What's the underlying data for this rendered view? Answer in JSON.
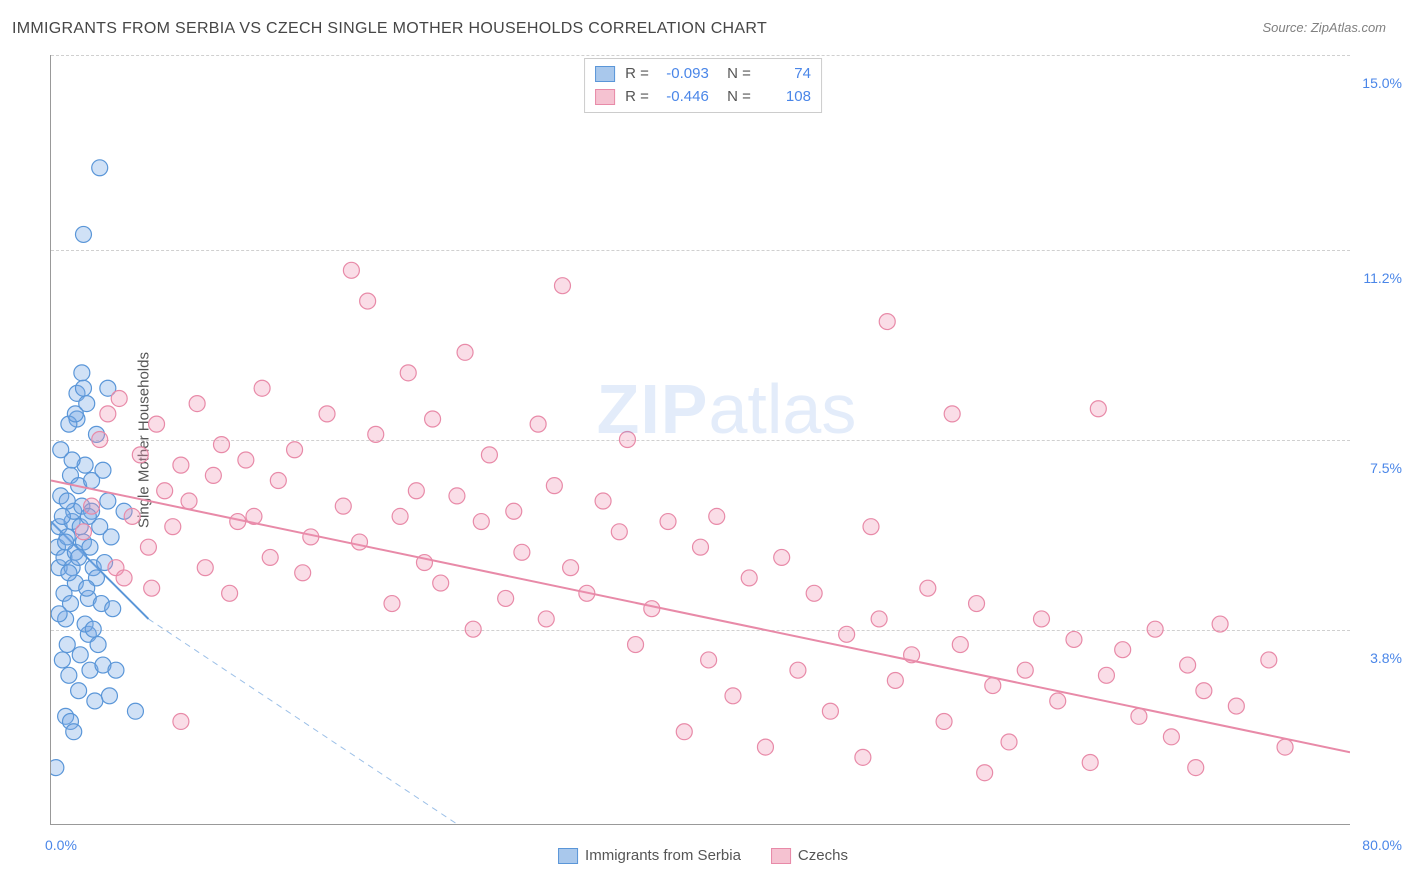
{
  "title": "IMMIGRANTS FROM SERBIA VS CZECH SINGLE MOTHER HOUSEHOLDS CORRELATION CHART",
  "source": "Source: ZipAtlas.com",
  "y_axis_label": "Single Mother Households",
  "watermark_a": "ZIP",
  "watermark_b": "atlas",
  "chart": {
    "type": "scatter-correlation",
    "background_color": "#ffffff",
    "grid_color": "#d0d0d0",
    "axis_color": "#999999",
    "x_range": [
      0.0,
      80.0
    ],
    "y_range": [
      0.0,
      15.0
    ],
    "x_ticks": [
      {
        "v": 0.0,
        "label": "0.0%"
      },
      {
        "v": 80.0,
        "label": "80.0%"
      }
    ],
    "y_ticks": [
      {
        "v": 3.8,
        "label": "3.8%"
      },
      {
        "v": 7.5,
        "label": "7.5%"
      },
      {
        "v": 11.2,
        "label": "11.2%"
      },
      {
        "v": 15.0,
        "label": "15.0%"
      }
    ],
    "marker_radius": 8,
    "marker_stroke_width": 1.2,
    "line_width": 2,
    "series": [
      {
        "id": "serbia",
        "label": "Immigrants from Serbia",
        "fill": "rgba(120,170,230,0.35)",
        "stroke": "#5a96d8",
        "swatch_fill": "#a9c8ec",
        "swatch_border": "#5a96d8",
        "R": "-0.093",
        "N": "74",
        "trend": {
          "x1": 0.0,
          "y1": 5.9,
          "x2": 6.0,
          "y2": 4.0,
          "extend_dashed_to_x": 25.0,
          "extend_dashed_to_y": 0.0
        },
        "points": [
          [
            0.3,
            1.1
          ],
          [
            0.4,
            5.4
          ],
          [
            0.5,
            5.0
          ],
          [
            0.5,
            5.8
          ],
          [
            0.6,
            6.4
          ],
          [
            0.6,
            7.3
          ],
          [
            0.7,
            3.2
          ],
          [
            0.8,
            4.5
          ],
          [
            0.8,
            5.2
          ],
          [
            0.9,
            2.1
          ],
          [
            0.9,
            4.0
          ],
          [
            1.0,
            3.5
          ],
          [
            1.0,
            5.6
          ],
          [
            1.1,
            2.9
          ],
          [
            1.2,
            4.3
          ],
          [
            1.2,
            6.8
          ],
          [
            1.3,
            5.0
          ],
          [
            1.3,
            5.9
          ],
          [
            1.4,
            6.1
          ],
          [
            1.5,
            4.7
          ],
          [
            1.5,
            5.3
          ],
          [
            1.6,
            7.9
          ],
          [
            1.6,
            8.4
          ],
          [
            1.7,
            5.2
          ],
          [
            1.7,
            6.6
          ],
          [
            1.8,
            5.8
          ],
          [
            1.8,
            3.3
          ],
          [
            1.9,
            6.2
          ],
          [
            1.9,
            8.8
          ],
          [
            2.0,
            11.5
          ],
          [
            2.0,
            5.5
          ],
          [
            2.1,
            7.0
          ],
          [
            2.2,
            8.2
          ],
          [
            2.3,
            3.7
          ],
          [
            2.3,
            4.4
          ],
          [
            2.4,
            3.0
          ],
          [
            2.4,
            5.4
          ],
          [
            2.5,
            6.1
          ],
          [
            2.5,
            6.7
          ],
          [
            2.6,
            5.0
          ],
          [
            2.7,
            2.4
          ],
          [
            2.8,
            4.8
          ],
          [
            2.8,
            7.6
          ],
          [
            2.9,
            3.5
          ],
          [
            3.0,
            5.8
          ],
          [
            3.0,
            12.8
          ],
          [
            1.2,
            2.0
          ],
          [
            1.4,
            1.8
          ],
          [
            1.7,
            2.6
          ],
          [
            1.1,
            4.9
          ],
          [
            0.7,
            6.0
          ],
          [
            0.5,
            4.1
          ],
          [
            2.1,
            3.9
          ],
          [
            2.2,
            4.6
          ],
          [
            2.6,
            3.8
          ],
          [
            3.1,
            4.3
          ],
          [
            3.2,
            6.9
          ],
          [
            3.3,
            5.1
          ],
          [
            3.5,
            8.5
          ],
          [
            3.5,
            6.3
          ],
          [
            3.7,
            5.6
          ],
          [
            3.8,
            4.2
          ],
          [
            0.9,
            5.5
          ],
          [
            1.0,
            6.3
          ],
          [
            1.1,
            7.8
          ],
          [
            1.3,
            7.1
          ],
          [
            1.5,
            8.0
          ],
          [
            2.0,
            8.5
          ],
          [
            2.3,
            6.0
          ],
          [
            3.2,
            3.1
          ],
          [
            3.6,
            2.5
          ],
          [
            4.0,
            3.0
          ],
          [
            5.2,
            2.2
          ],
          [
            4.5,
            6.1
          ]
        ]
      },
      {
        "id": "czechs",
        "label": "Czechs",
        "fill": "rgba(240,150,180,0.32)",
        "stroke": "#e88aa8",
        "swatch_fill": "#f5c2d1",
        "swatch_border": "#e88aa8",
        "R": "-0.446",
        "N": "108",
        "trend": {
          "x1": 0.0,
          "y1": 6.7,
          "x2": 80.0,
          "y2": 1.4
        },
        "points": [
          [
            2.0,
            5.7
          ],
          [
            2.5,
            6.2
          ],
          [
            3.0,
            7.5
          ],
          [
            3.5,
            8.0
          ],
          [
            4.0,
            5.0
          ],
          [
            4.2,
            8.3
          ],
          [
            4.5,
            4.8
          ],
          [
            5.0,
            6.0
          ],
          [
            5.5,
            7.2
          ],
          [
            6.0,
            5.4
          ],
          [
            6.2,
            4.6
          ],
          [
            6.5,
            7.8
          ],
          [
            7.0,
            6.5
          ],
          [
            7.5,
            5.8
          ],
          [
            8.0,
            7.0
          ],
          [
            8.0,
            2.0
          ],
          [
            8.5,
            6.3
          ],
          [
            9.0,
            8.2
          ],
          [
            9.5,
            5.0
          ],
          [
            10.0,
            6.8
          ],
          [
            10.5,
            7.4
          ],
          [
            11.0,
            4.5
          ],
          [
            11.5,
            5.9
          ],
          [
            12.0,
            7.1
          ],
          [
            12.5,
            6.0
          ],
          [
            13.0,
            8.5
          ],
          [
            13.5,
            5.2
          ],
          [
            14.0,
            6.7
          ],
          [
            15.0,
            7.3
          ],
          [
            15.5,
            4.9
          ],
          [
            16.0,
            5.6
          ],
          [
            17.0,
            8.0
          ],
          [
            18.0,
            6.2
          ],
          [
            18.5,
            10.8
          ],
          [
            19.0,
            5.5
          ],
          [
            19.5,
            10.2
          ],
          [
            20.0,
            7.6
          ],
          [
            21.0,
            4.3
          ],
          [
            21.5,
            6.0
          ],
          [
            22.0,
            8.8
          ],
          [
            22.5,
            6.5
          ],
          [
            23.0,
            5.1
          ],
          [
            23.5,
            7.9
          ],
          [
            24.0,
            4.7
          ],
          [
            25.0,
            6.4
          ],
          [
            25.5,
            9.2
          ],
          [
            26.0,
            3.8
          ],
          [
            26.5,
            5.9
          ],
          [
            27.0,
            7.2
          ],
          [
            28.0,
            4.4
          ],
          [
            28.5,
            6.1
          ],
          [
            29.0,
            5.3
          ],
          [
            30.0,
            7.8
          ],
          [
            30.5,
            4.0
          ],
          [
            31.0,
            6.6
          ],
          [
            31.5,
            10.5
          ],
          [
            32.0,
            5.0
          ],
          [
            33.0,
            4.5
          ],
          [
            34.0,
            6.3
          ],
          [
            35.0,
            5.7
          ],
          [
            35.5,
            7.5
          ],
          [
            36.0,
            3.5
          ],
          [
            37.0,
            4.2
          ],
          [
            38.0,
            5.9
          ],
          [
            39.0,
            1.8
          ],
          [
            40.0,
            5.4
          ],
          [
            40.5,
            3.2
          ],
          [
            41.0,
            6.0
          ],
          [
            42.0,
            2.5
          ],
          [
            43.0,
            4.8
          ],
          [
            44.0,
            1.5
          ],
          [
            45.0,
            5.2
          ],
          [
            46.0,
            3.0
          ],
          [
            47.0,
            4.5
          ],
          [
            48.0,
            2.2
          ],
          [
            49.0,
            3.7
          ],
          [
            50.0,
            1.3
          ],
          [
            50.5,
            5.8
          ],
          [
            51.0,
            4.0
          ],
          [
            51.5,
            9.8
          ],
          [
            52.0,
            2.8
          ],
          [
            53.0,
            3.3
          ],
          [
            54.0,
            4.6
          ],
          [
            55.0,
            2.0
          ],
          [
            55.5,
            8.0
          ],
          [
            56.0,
            3.5
          ],
          [
            57.0,
            4.3
          ],
          [
            57.5,
            1.0
          ],
          [
            58.0,
            2.7
          ],
          [
            59.0,
            1.6
          ],
          [
            60.0,
            3.0
          ],
          [
            61.0,
            4.0
          ],
          [
            62.0,
            2.4
          ],
          [
            63.0,
            3.6
          ],
          [
            64.0,
            1.2
          ],
          [
            64.5,
            8.1
          ],
          [
            65.0,
            2.9
          ],
          [
            66.0,
            3.4
          ],
          [
            67.0,
            2.1
          ],
          [
            68.0,
            3.8
          ],
          [
            69.0,
            1.7
          ],
          [
            70.0,
            3.1
          ],
          [
            70.5,
            1.1
          ],
          [
            71.0,
            2.6
          ],
          [
            72.0,
            3.9
          ],
          [
            73.0,
            2.3
          ],
          [
            75.0,
            3.2
          ],
          [
            76.0,
            1.5
          ]
        ]
      }
    ]
  }
}
